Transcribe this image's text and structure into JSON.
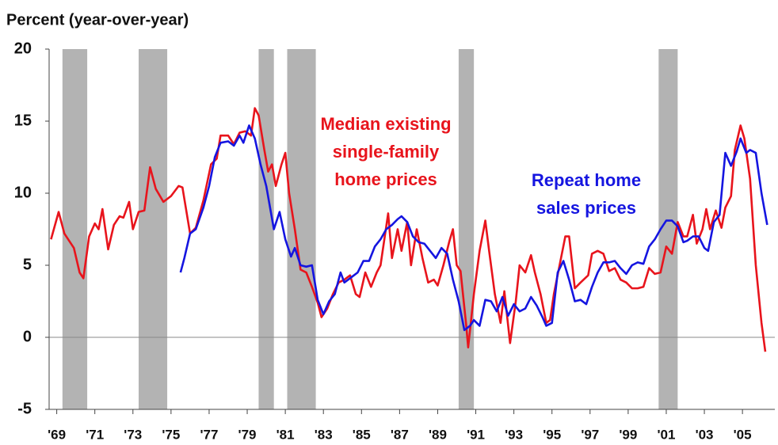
{
  "chart_data": {
    "type": "line",
    "title": "Percent (year-over-year)",
    "xlim": [
      1968.6,
      2006.7
    ],
    "ylim": [
      -5,
      20
    ],
    "yticks": [
      -5,
      0,
      5,
      10,
      15,
      20
    ],
    "xticks": [
      {
        "value": 1969,
        "label": "'69"
      },
      {
        "value": 1971,
        "label": "'71"
      },
      {
        "value": 1973,
        "label": "'73"
      },
      {
        "value": 1975,
        "label": "'75"
      },
      {
        "value": 1977,
        "label": "'77"
      },
      {
        "value": 1979,
        "label": "'79"
      },
      {
        "value": 1981,
        "label": "'81"
      },
      {
        "value": 1983,
        "label": "'83"
      },
      {
        "value": 1985,
        "label": "'85"
      },
      {
        "value": 1987,
        "label": "'87"
      },
      {
        "value": 1989,
        "label": "'89"
      },
      {
        "value": 1991,
        "label": "'91"
      },
      {
        "value": 1993,
        "label": "'93"
      },
      {
        "value": 1995,
        "label": "'95"
      },
      {
        "value": 1997,
        "label": "'97"
      },
      {
        "value": 1999,
        "label": "'99"
      },
      {
        "value": 2001,
        "label": "'01"
      },
      {
        "value": 2003,
        "label": "'03"
      },
      {
        "value": 2005,
        "label": "'05"
      }
    ],
    "shading": [
      [
        1969.3,
        1970.6
      ],
      [
        1973.3,
        1974.8
      ],
      [
        1979.6,
        1980.4
      ],
      [
        1981.1,
        1982.6
      ],
      [
        1990.1,
        1990.9
      ],
      [
        2000.6,
        2001.6
      ]
    ],
    "shading_color": "#b3b3b3",
    "series": [
      {
        "name": [
          "Median existing",
          "single-family",
          "home prices"
        ],
        "color": "#e8141c",
        "x": [
          1968.7,
          1969.1,
          1969.4,
          1969.9,
          1970.2,
          1970.4,
          1970.7,
          1971.0,
          1971.2,
          1971.4,
          1971.7,
          1972.0,
          1972.3,
          1972.5,
          1972.8,
          1973.0,
          1973.3,
          1973.6,
          1973.9,
          1974.2,
          1974.6,
          1975.0,
          1975.4,
          1975.6,
          1976.0,
          1976.3,
          1976.7,
          1977.1,
          1977.4,
          1977.6,
          1978.0,
          1978.3,
          1978.6,
          1978.9,
          1979.2,
          1979.4,
          1979.6,
          1979.9,
          1980.1,
          1980.3,
          1980.5,
          1980.8,
          1981.0,
          1981.2,
          1981.5,
          1981.8,
          1982.1,
          1982.4,
          1982.7,
          1982.9,
          1983.2,
          1983.5,
          1983.8,
          1984.1,
          1984.4,
          1984.7,
          1984.9,
          1985.2,
          1985.5,
          1985.8,
          1986.0,
          1986.4,
          1986.6,
          1986.9,
          1987.1,
          1987.4,
          1987.6,
          1987.9,
          1988.2,
          1988.5,
          1988.8,
          1989.0,
          1989.3,
          1989.6,
          1989.8,
          1990.0,
          1990.2,
          1990.5,
          1990.6,
          1990.9,
          1991.2,
          1991.5,
          1991.7,
          1992.0,
          1992.3,
          1992.5,
          1992.8,
          1993.1,
          1993.3,
          1993.6,
          1993.9,
          1994.1,
          1994.4,
          1994.7,
          1994.9,
          1995.1,
          1995.4,
          1995.7,
          1995.9,
          1996.2,
          1996.5,
          1996.9,
          1997.1,
          1997.4,
          1997.7,
          1998.0,
          1998.3,
          1998.6,
          1998.9,
          1999.2,
          1999.5,
          1999.8,
          2000.1,
          2000.4,
          2000.7,
          2001.0,
          2001.3,
          2001.6,
          2001.9,
          2002.1,
          2002.4,
          2002.6,
          2002.9,
          2003.1,
          2003.3,
          2003.6,
          2003.9,
          2004.1,
          2004.4,
          2004.6,
          2004.9,
          2005.1,
          2005.4,
          2005.7,
          2006.0,
          2006.2
        ],
        "values": [
          6.8,
          8.7,
          7.2,
          6.2,
          4.5,
          4.1,
          7.0,
          7.9,
          7.5,
          8.9,
          6.1,
          7.8,
          8.4,
          8.3,
          9.4,
          7.5,
          8.7,
          8.8,
          11.8,
          10.3,
          9.4,
          9.8,
          10.5,
          10.4,
          7.2,
          7.6,
          9.5,
          12.0,
          12.4,
          14.0,
          14.0,
          13.4,
          14.2,
          14.3,
          14.0,
          15.9,
          15.4,
          13.0,
          11.5,
          12.0,
          10.5,
          12.0,
          12.8,
          10.0,
          7.5,
          4.7,
          4.5,
          3.5,
          2.4,
          1.4,
          2.0,
          3.0,
          3.8,
          4.0,
          4.3,
          3.0,
          2.8,
          4.5,
          3.5,
          4.5,
          5.0,
          8.6,
          5.5,
          7.5,
          6.0,
          8.0,
          5.0,
          7.5,
          5.5,
          3.8,
          4.0,
          3.6,
          5.0,
          6.6,
          7.5,
          5.0,
          4.6,
          0.8,
          -0.7,
          3.0,
          6.0,
          8.1,
          6.0,
          3.0,
          1.0,
          3.2,
          -0.4,
          2.5,
          5.0,
          4.5,
          5.7,
          4.5,
          3.0,
          1.0,
          1.2,
          3.0,
          5.0,
          7.0,
          7.0,
          3.4,
          3.8,
          4.3,
          5.8,
          6.0,
          5.8,
          4.6,
          4.8,
          4.0,
          3.8,
          3.4,
          3.4,
          3.5,
          4.8,
          4.4,
          4.5,
          6.3,
          5.8,
          8.0,
          7.0,
          7.0,
          8.5,
          6.5,
          7.5,
          8.9,
          7.5,
          8.8,
          7.6,
          9.0,
          9.8,
          13.0,
          14.7,
          13.8,
          11.0,
          5.0,
          1.0,
          -1.0
        ]
      },
      {
        "name": [
          "Repeat home",
          "sales prices"
        ],
        "color": "#1515e0",
        "x": [
          1975.5,
          1975.7,
          1976.0,
          1976.3,
          1976.7,
          1977.0,
          1977.3,
          1977.6,
          1978.0,
          1978.3,
          1978.6,
          1978.8,
          1979.1,
          1979.4,
          1979.7,
          1980.0,
          1980.4,
          1980.7,
          1981.0,
          1981.3,
          1981.5,
          1981.8,
          1982.1,
          1982.4,
          1982.7,
          1983.0,
          1983.3,
          1983.6,
          1983.9,
          1984.1,
          1984.5,
          1984.8,
          1985.1,
          1985.4,
          1985.7,
          1986.0,
          1986.3,
          1986.6,
          1986.9,
          1987.1,
          1987.4,
          1987.7,
          1988.0,
          1988.3,
          1988.6,
          1988.9,
          1989.2,
          1989.5,
          1989.8,
          1990.1,
          1990.4,
          1990.7,
          1990.9,
          1991.2,
          1991.5,
          1991.8,
          1992.1,
          1992.4,
          1992.7,
          1993.0,
          1993.3,
          1993.6,
          1993.9,
          1994.2,
          1994.5,
          1994.7,
          1995.0,
          1995.3,
          1995.6,
          1995.9,
          1996.2,
          1996.5,
          1996.8,
          1997.1,
          1997.4,
          1997.7,
          1998.0,
          1998.3,
          1998.6,
          1998.9,
          1999.2,
          1999.5,
          1999.8,
          2000.1,
          2000.4,
          2000.7,
          2001.0,
          2001.3,
          2001.6,
          2001.9,
          2002.1,
          2002.4,
          2002.7,
          2003.0,
          2003.2,
          2003.5,
          2003.8,
          2004.1,
          2004.4,
          2004.7,
          2004.9,
          2005.2,
          2005.4,
          2005.7,
          2006.0,
          2006.3
        ],
        "values": [
          4.5,
          5.5,
          7.2,
          7.5,
          9.0,
          10.5,
          12.5,
          13.5,
          13.6,
          13.3,
          14.0,
          13.5,
          14.7,
          13.8,
          12.0,
          10.5,
          7.5,
          8.7,
          6.8,
          5.6,
          6.2,
          5.0,
          4.9,
          5.0,
          2.6,
          1.6,
          2.5,
          3.0,
          4.5,
          3.8,
          4.2,
          4.5,
          5.3,
          5.3,
          6.3,
          6.8,
          7.5,
          7.8,
          8.2,
          8.4,
          8.0,
          7.0,
          6.6,
          6.5,
          6.0,
          5.5,
          6.2,
          5.8,
          4.0,
          2.5,
          0.5,
          0.8,
          1.2,
          0.8,
          2.6,
          2.5,
          1.8,
          2.8,
          1.5,
          2.3,
          1.8,
          2.0,
          2.8,
          2.2,
          1.4,
          0.8,
          1.0,
          4.5,
          5.3,
          4.0,
          2.5,
          2.6,
          2.3,
          3.5,
          4.5,
          5.2,
          5.2,
          5.3,
          4.8,
          4.4,
          5.0,
          5.2,
          5.1,
          6.3,
          6.8,
          7.5,
          8.1,
          8.1,
          7.7,
          6.6,
          6.7,
          7.0,
          7.0,
          6.2,
          6.0,
          8.0,
          8.5,
          12.8,
          11.9,
          12.9,
          13.8,
          12.8,
          13.0,
          12.8,
          10.0,
          7.8
        ]
      }
    ]
  }
}
